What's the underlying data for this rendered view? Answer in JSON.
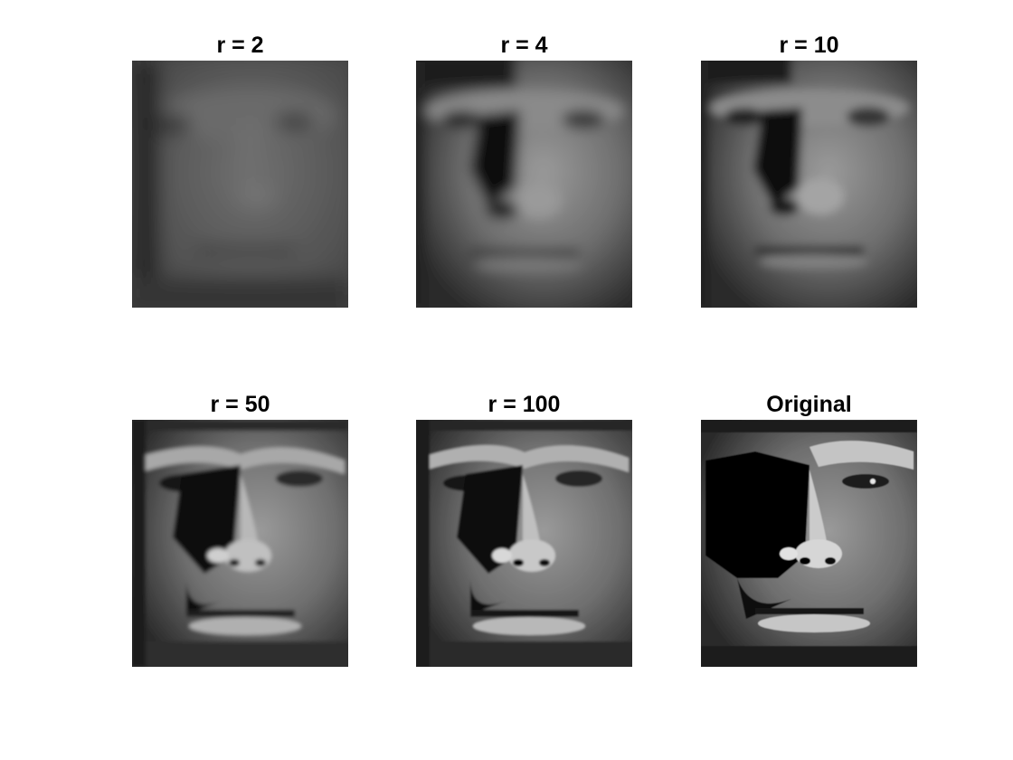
{
  "figure": {
    "panels": [
      {
        "title": "r = 2"
      },
      {
        "title": "r = 4"
      },
      {
        "title": "r = 10"
      },
      {
        "title": "r = 50"
      },
      {
        "title": "r = 100"
      },
      {
        "title": "Original"
      }
    ]
  }
}
